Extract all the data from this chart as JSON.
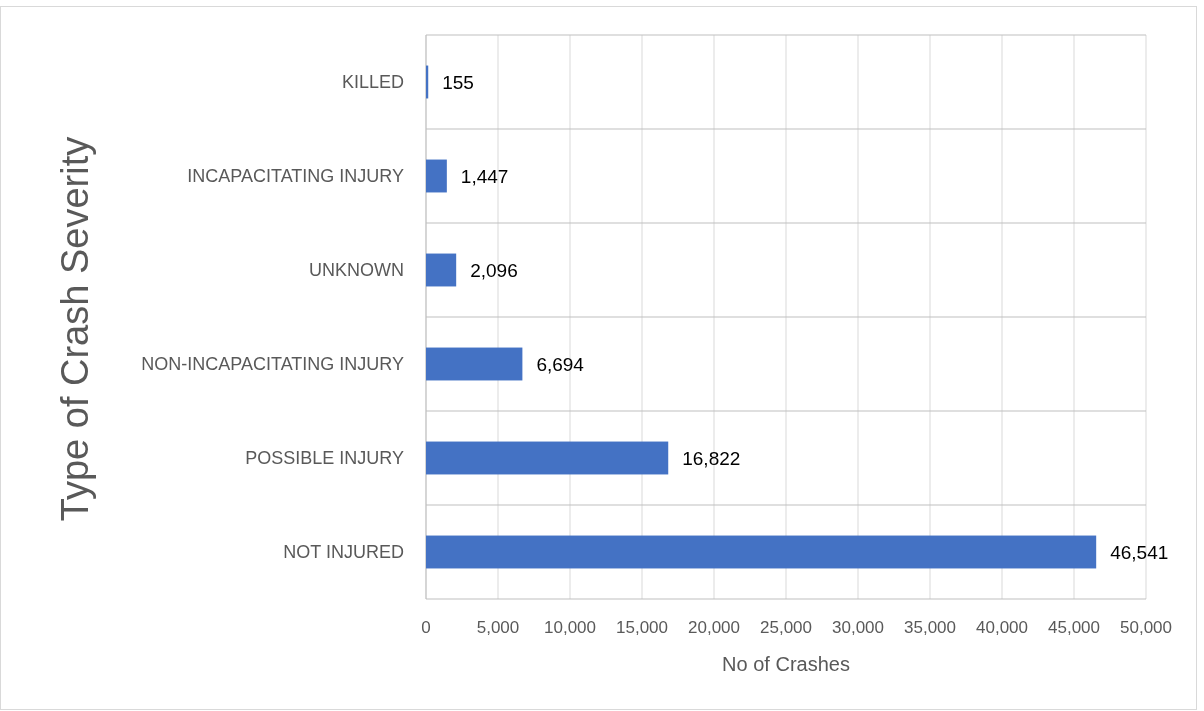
{
  "chart_data": {
    "type": "bar",
    "orientation": "horizontal",
    "ylabel": "Type of Crash Severity",
    "xlabel": "No of Crashes",
    "categories": [
      "KILLED",
      "INCAPACITATING INJURY",
      "UNKNOWN",
      "NON-INCAPACITATING INJURY",
      "POSSIBLE INJURY",
      "NOT INJURED"
    ],
    "values": [
      155,
      1447,
      2096,
      6694,
      16822,
      46541
    ],
    "color": "#4472c4",
    "xlim": [
      0,
      50000
    ],
    "xticks": [
      0,
      {
        "value": 5000,
        "label": "5,000"
      },
      {
        "value": 10000,
        "label": "10,000"
      },
      {
        "value": 15000,
        "label": "15,000"
      },
      {
        "value": 20000,
        "label": "20,000"
      },
      {
        "value": 25000,
        "label": "25,000"
      },
      {
        "value": 30000,
        "label": "30,000"
      },
      {
        "value": 35000,
        "label": "35,000"
      },
      {
        "value": 40000,
        "label": "40,000"
      },
      {
        "value": 45000,
        "label": "45,000"
      },
      {
        "value": 50000,
        "label": "50,000"
      }
    ],
    "value_labels": [
      "155",
      "1,447",
      "2,096",
      "6,694",
      "16,822",
      "46,541"
    ],
    "grid": true
  }
}
